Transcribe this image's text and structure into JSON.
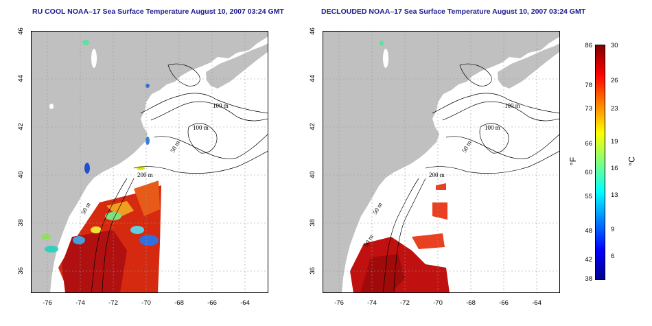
{
  "titles": {
    "left": "RU COOL NOAA–17 Sea Surface Temperature August 10, 2007 03:24 GMT",
    "right": "DECLOUDED NOAA–17 Sea Surface Temperature August 10, 2007 03:24 GMT"
  },
  "map": {
    "lon_range": [
      -77.2,
      -62.8
    ],
    "lat_range": [
      35,
      46
    ],
    "lon_ticks": [
      "-76",
      "-74",
      "-72",
      "-70",
      "-68",
      "-66",
      "-64"
    ],
    "lat_ticks": [
      "36",
      "38",
      "40",
      "42",
      "44",
      "46"
    ],
    "isobath_labels": [
      "100 m",
      "100 m",
      "50 m",
      "200 m",
      "50 m",
      "50 m"
    ],
    "land_color": "#c0c0c0",
    "gridlines": true
  },
  "colorbar": {
    "fahrenheit_ticks": [
      "86",
      "78",
      "73",
      "66",
      "60",
      "55",
      "48",
      "42",
      "38"
    ],
    "celsius_ticks": [
      "30",
      "26",
      "23",
      "19",
      "16",
      "13",
      "9",
      "6"
    ],
    "fahrenheit_unit": "°F",
    "celsius_unit": "°C",
    "range_c": [
      3.3,
      30
    ],
    "colors": [
      "#00008f",
      "#0000ff",
      "#0080ff",
      "#00ffff",
      "#80ff80",
      "#ffff00",
      "#ff8000",
      "#ff0000",
      "#800000"
    ]
  }
}
